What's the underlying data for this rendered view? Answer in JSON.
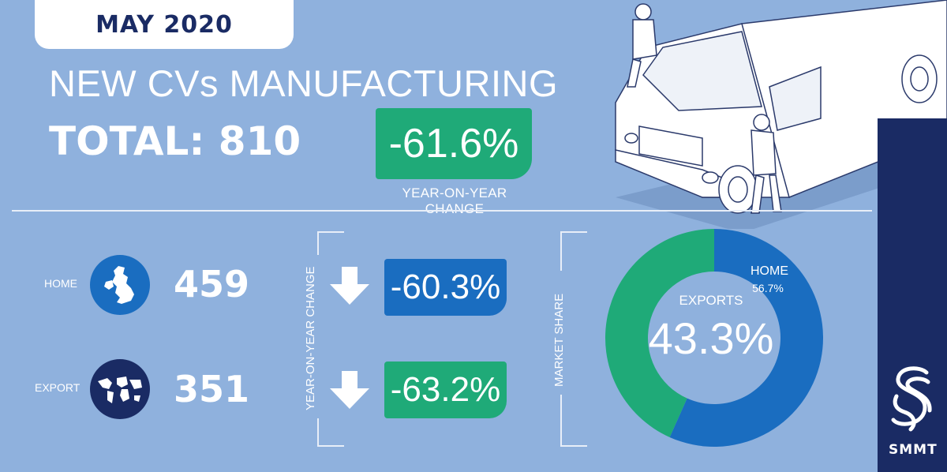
{
  "month": "MAY 2020",
  "title": "NEW CVs MANUFACTURING",
  "total_text": "TOTAL: 810",
  "yoy_total": "-61.6%",
  "yoy_label": "YEAR-ON-YEAR CHANGE",
  "rows": [
    {
      "label": "HOME",
      "value": "459",
      "change": "-60.3%",
      "icon": "uk-map-icon",
      "color": "#1a6dc0"
    },
    {
      "label": "EXPORT",
      "value": "351",
      "change": "-63.2%",
      "icon": "globe-icon",
      "color": "#1faa78"
    }
  ],
  "side_label_yoy": "YEAR-ON-YEAR CHANGE",
  "side_label_share": "MARKET SHARE",
  "brand": "SMMT",
  "colors": {
    "home": "#1a6dc0",
    "exports": "#1faa78",
    "navy": "#1a2b64",
    "background": "#8fb1dd"
  },
  "chart_data": {
    "type": "pie",
    "title": "MARKET SHARE",
    "series": [
      {
        "name": "HOME",
        "value": 56.7,
        "label": "56.7%",
        "color": "#1a6dc0"
      },
      {
        "name": "EXPORTS",
        "value": 43.3,
        "label": "43.3%",
        "color": "#1faa78"
      }
    ]
  }
}
